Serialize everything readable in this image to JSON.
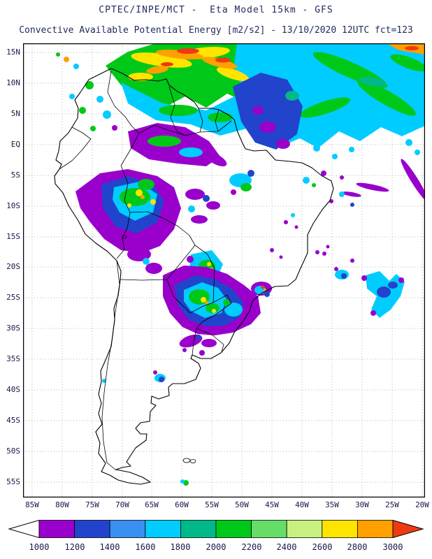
{
  "header": {
    "line1": "CPTEC/INPE/MCT -  Eta Model 15km - GFS",
    "line2": "Convective Available Potential Energy [m2/s2] - 13/10/2020 12UTC fct=123"
  },
  "map": {
    "lat_labels": [
      "15N",
      "10N",
      "5N",
      "EQ",
      "5S",
      "10S",
      "15S",
      "20S",
      "25S",
      "30S",
      "35S",
      "40S",
      "45S",
      "50S",
      "55S"
    ],
    "lon_labels": [
      "85W",
      "80W",
      "75W",
      "70W",
      "65W",
      "60W",
      "55W",
      "50W",
      "45W",
      "40W",
      "35W",
      "30W",
      "25W",
      "20W"
    ]
  },
  "colorbar": {
    "labels": [
      "1000",
      "1200",
      "1400",
      "1600",
      "1800",
      "2000",
      "2200",
      "2400",
      "2600",
      "2800",
      "3000"
    ],
    "segments": [
      "purple",
      "blue",
      "lightblue",
      "cyan",
      "teal",
      "green",
      "lightgreen",
      "palegreen",
      "yellow",
      "orange"
    ],
    "below_min_color": "#FFFFFF",
    "above_max_color": "#EE3A10"
  },
  "palette": {
    "purple": "#9900CC",
    "blue": "#2244CC",
    "lightblue": "#3990F0",
    "cyan": "#00CCFF",
    "teal": "#00B88A",
    "green": "#00C818",
    "lightgreen": "#66DD66",
    "palegreen": "#C8F080",
    "yellow": "#FFE400",
    "orange": "#FFA000",
    "red": "#EE3A10"
  }
}
